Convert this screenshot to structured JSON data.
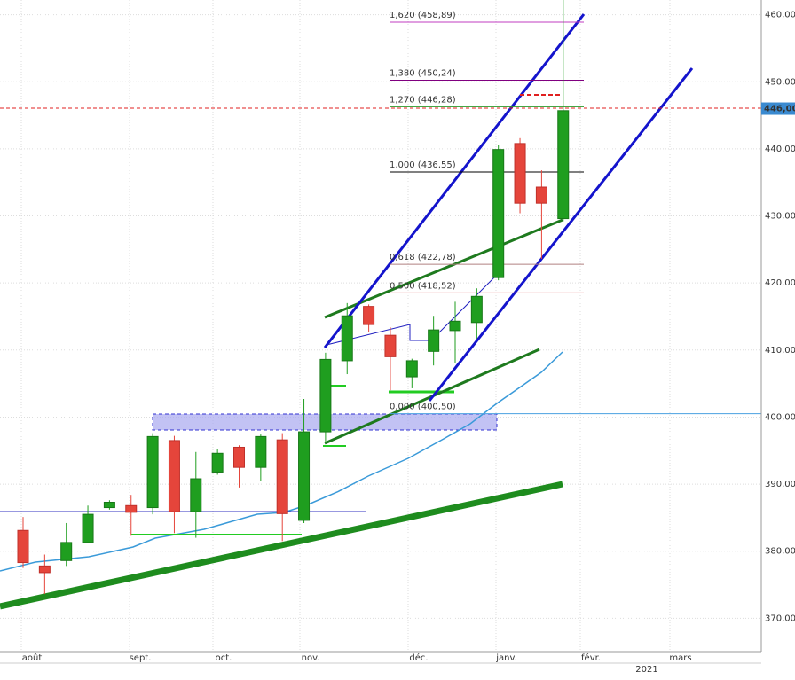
{
  "chart_data": {
    "type": "candlestick",
    "open": [
      383.1,
      377.8,
      378.6,
      381.3,
      386.5,
      386.8,
      386.5,
      396.5,
      385.9,
      391.8,
      395.5,
      392.5,
      396.6,
      384.6,
      397.8,
      408.4,
      416.5,
      412.2,
      406,
      409.8,
      412.9,
      414.1,
      420.8,
      440.8,
      434.3,
      429.6
    ],
    "high": [
      385.1,
      379.5,
      384.2,
      386.8,
      387.6,
      388.4,
      397.6,
      397.2,
      394.8,
      395.3,
      395.8,
      397.4,
      397.6,
      402.7,
      409.6,
      417,
      416.8,
      413.4,
      408.7,
      415.1,
      417.2,
      419.2,
      440.6,
      441.6,
      436.8,
      462.2
    ],
    "low": [
      377.5,
      373.6,
      377.8,
      381.3,
      386.2,
      382.3,
      385.5,
      382.7,
      382,
      391.4,
      389.5,
      390.5,
      381.5,
      384.2,
      396.1,
      406.4,
      412.7,
      404,
      404.3,
      407.7,
      408,
      411.7,
      420.4,
      430.4,
      423.6,
      429.2
    ],
    "close": [
      378.3,
      376.8,
      381.3,
      385.5,
      387.3,
      385.8,
      397.1,
      385.9,
      390.8,
      394.6,
      392.5,
      397.1,
      385.6,
      397.8,
      408.6,
      415.1,
      413.8,
      409,
      408.4,
      413,
      414.3,
      418,
      439.9,
      431.9,
      431.9,
      445.7
    ],
    "up_color": "#1f9e1f",
    "down_color": "#e5453b",
    "ylim": [
      366,
      462.2
    ],
    "yticks": [
      {
        "value": 370,
        "label": "370,00"
      },
      {
        "value": 380,
        "label": "380,00"
      },
      {
        "value": 390,
        "label": "390,00"
      },
      {
        "value": 400,
        "label": "400,00"
      },
      {
        "value": 410,
        "label": "410,00"
      },
      {
        "value": 420,
        "label": "420,00"
      },
      {
        "value": 430,
        "label": "430,00"
      },
      {
        "value": 440,
        "label": "440,00"
      },
      {
        "value": 450,
        "label": "450,00"
      },
      {
        "value": 460,
        "label": "460,00"
      }
    ],
    "x_labels": [
      "août",
      "sept.",
      "oct.",
      "nov.",
      "déc.",
      "janv.",
      "févr.",
      "mars"
    ],
    "year_label": "2021",
    "last_price": {
      "value": 446,
      "label": "446,00"
    },
    "fib_levels": [
      {
        "value": 458.89,
        "label": "1,620 (458,89)",
        "color": "#c03cc0"
      },
      {
        "value": 450.24,
        "label": "1,380 (450,24)",
        "color": "#800080"
      },
      {
        "value": 446.28,
        "label": "1,270 (446,28)",
        "color": "#2a9a2a"
      },
      {
        "value": 436.55,
        "label": "1,000 (436,55)",
        "color": "#000000"
      },
      {
        "value": 422.78,
        "label": "0,618 (422,78)",
        "color": "#b08080"
      },
      {
        "value": 418.52,
        "label": "0,500 (418,52)",
        "color": "#e06060"
      },
      {
        "value": 400.5,
        "label": "0,000 (400,50)",
        "color": "#4aa0e0"
      }
    ],
    "grid": true
  }
}
